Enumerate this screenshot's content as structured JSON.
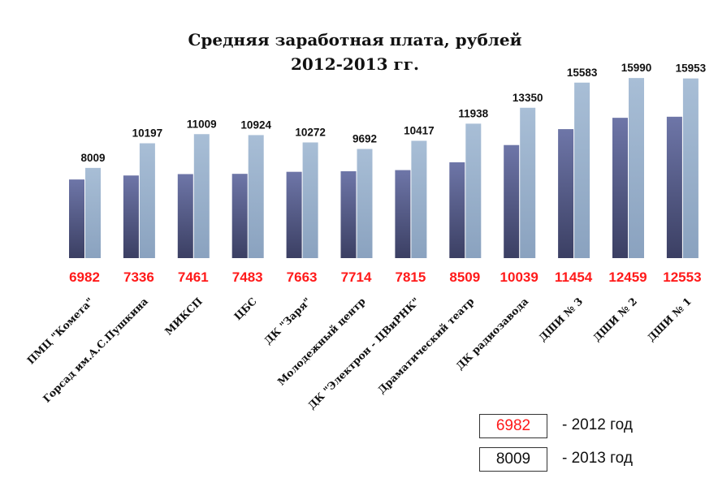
{
  "chart_data": {
    "type": "bar",
    "title": "Средняя заработная плата, рублей",
    "subtitle": "2012-2013 гг.",
    "categories": [
      "ПМЦ \"Комета\"",
      "Горсад им.А.С.Пушкина",
      "МИКСП",
      "ЦБС",
      "ДК \"Заря\"",
      "Молодежный центр",
      "ДК \"Электрон - ЦВиРНК\"",
      "Драматический театр",
      "ДК радиозавода",
      "ДШИ № 3",
      "ДШИ № 2",
      "ДШИ № 1"
    ],
    "series": [
      {
        "name": "- 2012 год",
        "values": [
          6982,
          7336,
          7461,
          7483,
          7663,
          7714,
          7815,
          8509,
          10039,
          11454,
          12459,
          12553
        ],
        "color": "#5c6391",
        "label_color": "#ff1a1a"
      },
      {
        "name": "- 2013 год",
        "values": [
          8009,
          10197,
          11009,
          10924,
          10272,
          9692,
          10417,
          11938,
          13350,
          15583,
          15990,
          15953
        ],
        "color": "#9db3cc",
        "label_color": "#111111"
      }
    ],
    "ylim": [
      0,
      18000
    ],
    "grid": false,
    "legend_position": "bottom-right"
  },
  "legend": {
    "items": [
      {
        "sample": "6982",
        "label": "- 2012 год",
        "sample_color": "#ff1a1a"
      },
      {
        "sample": "8009",
        "label": "- 2013 год",
        "sample_color": "#111111"
      }
    ]
  }
}
